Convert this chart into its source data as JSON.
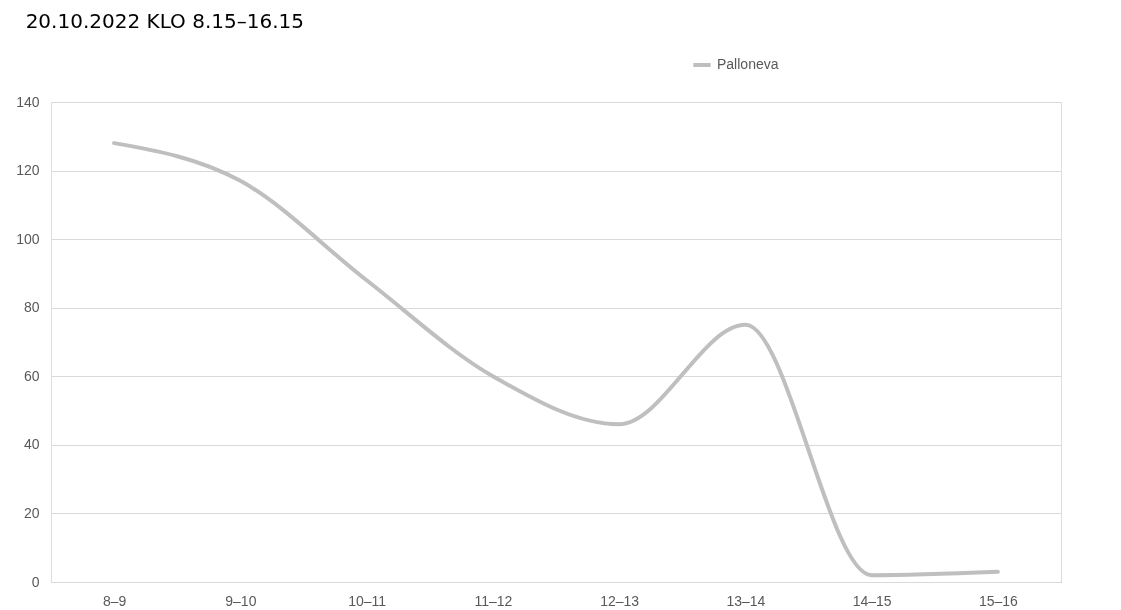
{
  "chart_data": {
    "type": "line",
    "title": "20.10.2022 KLO 8.15–16.15",
    "categories": [
      "8–9",
      "9–10",
      "10–11",
      "11–12",
      "12–13",
      "13–14",
      "14–15",
      "15–16"
    ],
    "series": [
      {
        "name": "Palloneva",
        "color": "#bfbfbf",
        "values": [
          128,
          117,
          88,
          60,
          46,
          75,
          2,
          3
        ]
      }
    ],
    "ylim": [
      0,
      140
    ],
    "yticks": [
      0,
      20,
      40,
      60,
      80,
      100,
      120,
      140
    ],
    "grid": "y",
    "legend": "top right",
    "marker": "none",
    "line_style": "solid"
  }
}
